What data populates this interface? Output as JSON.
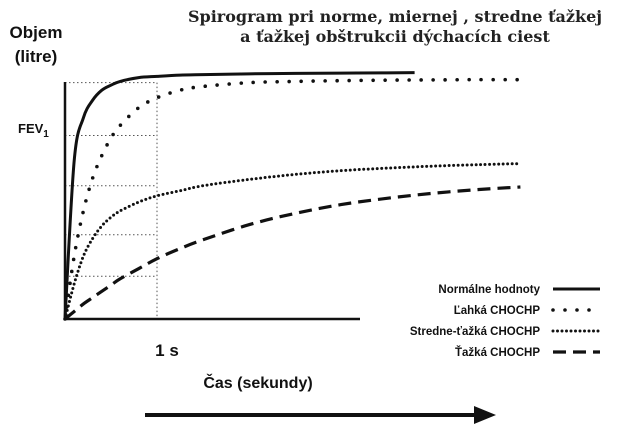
{
  "chart_data": {
    "type": "line",
    "title_line1": "Spirogram pri norme, miernej , stredne ťažkej",
    "title_line2": "a ťažkej obštrukcii dýchacích ciest",
    "ylabel_line1": "Objem",
    "ylabel_line2": "(litre)",
    "y_tick_label_main": "FEV",
    "y_tick_label_sub": "1",
    "x_tick_label": "1 s",
    "xlabel": "Čas (sekundy)",
    "x": [
      0,
      0.1,
      0.2,
      0.3,
      0.4,
      0.5,
      0.6,
      0.8,
      1.0,
      1.25,
      1.5,
      2.0,
      2.5,
      3.0,
      3.5,
      4.0,
      4.5,
      5.0
    ],
    "xlim": [
      0,
      5
    ],
    "ylim": [
      0,
      1.05
    ],
    "series": [
      {
        "name": "Normálne hodnoty",
        "style": "solid",
        "x_end": 3.8,
        "values": [
          0,
          0.63,
          0.8,
          0.87,
          0.91,
          0.93,
          0.945,
          0.96,
          0.965,
          0.97,
          0.972,
          0.975,
          0.977,
          0.978,
          0.979,
          0.98,
          0.98,
          0.98
        ]
      },
      {
        "name": "Ľahká CHOCHP",
        "style": "dotted-sparse",
        "x_end": 4.95,
        "values": [
          0,
          0.25,
          0.43,
          0.56,
          0.65,
          0.72,
          0.77,
          0.84,
          0.88,
          0.91,
          0.925,
          0.94,
          0.945,
          0.948,
          0.95,
          0.951,
          0.952,
          0.952
        ]
      },
      {
        "name": "Stredne-ťažká CHOCHP",
        "style": "dotted-dense",
        "x_end": 4.95,
        "values": [
          0,
          0.14,
          0.25,
          0.32,
          0.37,
          0.405,
          0.43,
          0.465,
          0.49,
          0.51,
          0.53,
          0.555,
          0.575,
          0.59,
          0.6,
          0.608,
          0.614,
          0.618
        ]
      },
      {
        "name": "Ťažká CHOCHP",
        "style": "dashed",
        "x_end": 4.95,
        "values": [
          0,
          0.03,
          0.06,
          0.085,
          0.11,
          0.135,
          0.16,
          0.2,
          0.24,
          0.28,
          0.315,
          0.375,
          0.42,
          0.455,
          0.48,
          0.5,
          0.515,
          0.525
        ]
      }
    ],
    "reference_lines": {
      "x": [
        1
      ],
      "y": [
        0.73,
        0.53,
        0.335,
        0.17,
        0.94
      ]
    },
    "grid": false,
    "legend_position": "bottom-right",
    "arrow": true,
    "colors": {
      "line": "#111111",
      "grid": "#555555"
    }
  }
}
